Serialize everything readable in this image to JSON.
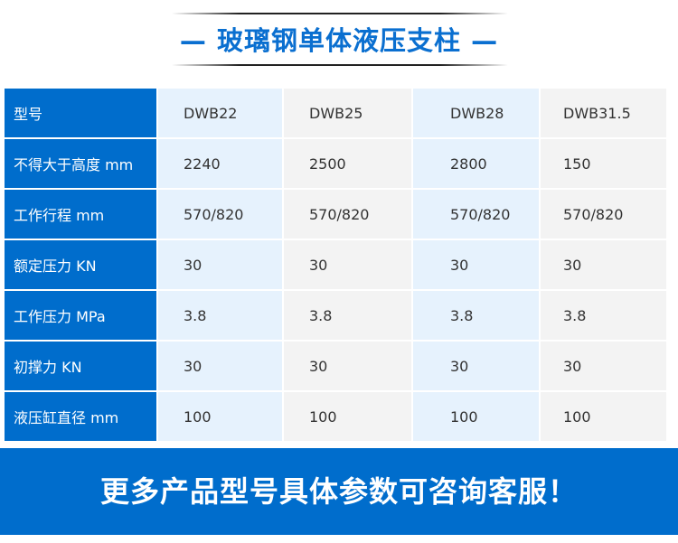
{
  "title": "— 玻璃钢单体液压支柱 —",
  "table": {
    "rows": [
      {
        "label": "型号",
        "values": [
          "DWB22",
          "DWB25",
          "DWB28",
          "DWB31.5"
        ]
      },
      {
        "label": "不得大于高度 mm",
        "values": [
          "2240",
          "2500",
          "2800",
          "150"
        ]
      },
      {
        "label": "工作行程 mm",
        "values": [
          "570/820",
          "570/820",
          "570/820",
          "570/820"
        ]
      },
      {
        "label": "额定压力 KN",
        "values": [
          "30",
          "30",
          "30",
          "30"
        ]
      },
      {
        "label": "工作压力 MPa",
        "values": [
          "3.8",
          "3.8",
          "3.8",
          "3.8"
        ]
      },
      {
        "label": "初撑力 KN",
        "values": [
          "30",
          "30",
          "30",
          "30"
        ]
      },
      {
        "label": "液压缸直径 mm",
        "values": [
          "100",
          "100",
          "100",
          "100"
        ]
      }
    ]
  },
  "banner": "更多产品型号具体参数可咨询客服！",
  "colors": {
    "brand": "#006dcc",
    "title": "#0a6fd0"
  }
}
